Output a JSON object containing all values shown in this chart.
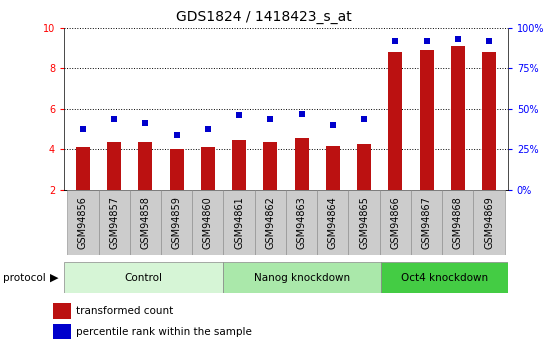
{
  "title": "GDS1824 / 1418423_s_at",
  "samples": [
    "GSM94856",
    "GSM94857",
    "GSM94858",
    "GSM94859",
    "GSM94860",
    "GSM94861",
    "GSM94862",
    "GSM94863",
    "GSM94864",
    "GSM94865",
    "GSM94866",
    "GSM94867",
    "GSM94868",
    "GSM94869"
  ],
  "transformed_count": [
    4.1,
    4.35,
    4.35,
    4.0,
    4.1,
    4.45,
    4.35,
    4.55,
    4.15,
    4.25,
    8.8,
    8.9,
    9.1,
    8.8
  ],
  "percentile_rank": [
    5.0,
    5.5,
    5.3,
    4.7,
    5.0,
    5.7,
    5.5,
    5.75,
    5.2,
    5.5,
    9.35,
    9.35,
    9.45,
    9.35
  ],
  "groups": [
    {
      "label": "Control",
      "start": 0,
      "end": 5,
      "color": "#d6f5d6"
    },
    {
      "label": "Nanog knockdown",
      "start": 5,
      "end": 10,
      "color": "#aae8aa"
    },
    {
      "label": "Oct4 knockdown",
      "start": 10,
      "end": 14,
      "color": "#44cc44"
    }
  ],
  "ylim": [
    2,
    10
  ],
  "yticks": [
    2,
    4,
    6,
    8,
    10
  ],
  "right_yticks_pct": [
    0,
    25,
    50,
    75,
    100
  ],
  "bar_color": "#bb1111",
  "dot_color": "#0000cc",
  "bg_color": "#ffffff",
  "plot_bg": "#ffffff",
  "title_fontsize": 10,
  "tick_fontsize": 7,
  "label_fontsize": 7.5
}
